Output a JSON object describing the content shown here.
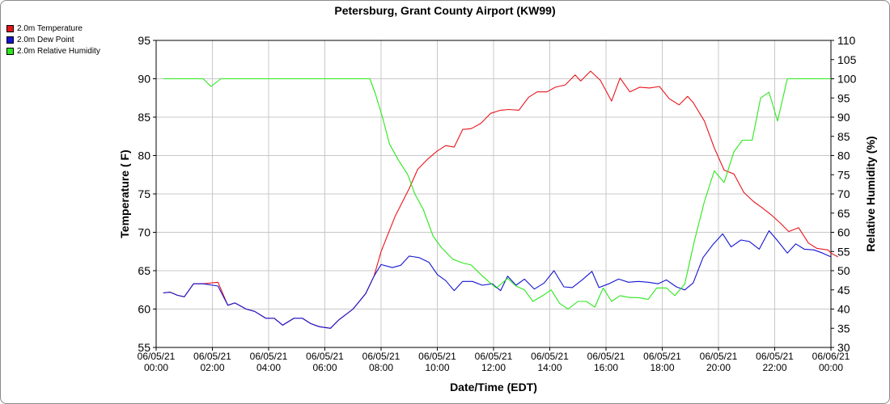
{
  "chart_data": {
    "type": "line",
    "title": "Petersburg, Grant County Airport (KW99)",
    "xlabel": "Date/Time (EDT)",
    "ylabel": "Temperature ( F)",
    "y2label": "Relative Humidity (%)",
    "x_ticks": [
      {
        "date": "06/05/21",
        "time": "00:00",
        "hour": 0
      },
      {
        "date": "06/05/21",
        "time": "02:00",
        "hour": 2
      },
      {
        "date": "06/05/21",
        "time": "04:00",
        "hour": 4
      },
      {
        "date": "06/05/21",
        "time": "06:00",
        "hour": 6
      },
      {
        "date": "06/05/21",
        "time": "08:00",
        "hour": 8
      },
      {
        "date": "06/05/21",
        "time": "10:00",
        "hour": 10
      },
      {
        "date": "06/05/21",
        "time": "12:00",
        "hour": 12
      },
      {
        "date": "06/05/21",
        "time": "14:00",
        "hour": 14
      },
      {
        "date": "06/05/21",
        "time": "16:00",
        "hour": 16
      },
      {
        "date": "06/05/21",
        "time": "18:00",
        "hour": 18
      },
      {
        "date": "06/05/21",
        "time": "20:00",
        "hour": 20
      },
      {
        "date": "06/05/21",
        "time": "22:00",
        "hour": 22
      },
      {
        "date": "06/06/21",
        "time": "00:00",
        "hour": 24
      }
    ],
    "ylim": [
      55,
      95
    ],
    "yticks": [
      55,
      60,
      65,
      70,
      75,
      80,
      85,
      90,
      95
    ],
    "y2lim": [
      30,
      110
    ],
    "y2ticks": [
      30,
      35,
      40,
      45,
      50,
      55,
      60,
      65,
      70,
      75,
      80,
      85,
      90,
      95,
      100,
      105,
      110
    ],
    "grid": true,
    "legend_position": "top-left",
    "series": [
      {
        "name": "2.0m Temperature",
        "color": "#e8141c",
        "axis": "left",
        "points": [
          [
            0.25,
            62.1
          ],
          [
            0.5,
            62.2
          ],
          [
            0.75,
            61.8
          ],
          [
            1.0,
            61.6
          ],
          [
            1.33,
            63.3
          ],
          [
            1.67,
            63.3
          ],
          [
            2.2,
            63.5
          ],
          [
            2.55,
            60.5
          ],
          [
            2.8,
            60.8
          ],
          [
            3.2,
            60.0
          ],
          [
            3.5,
            59.7
          ],
          [
            3.9,
            58.8
          ],
          [
            4.2,
            58.8
          ],
          [
            4.5,
            57.9
          ],
          [
            4.9,
            58.8
          ],
          [
            5.2,
            58.8
          ],
          [
            5.5,
            58.1
          ],
          [
            5.8,
            57.7
          ],
          [
            6.2,
            57.5
          ],
          [
            6.5,
            58.6
          ],
          [
            7.0,
            60.0
          ],
          [
            7.45,
            62.0
          ],
          [
            7.75,
            64.3
          ],
          [
            8.0,
            67.5
          ],
          [
            8.5,
            72.1
          ],
          [
            9.0,
            75.7
          ],
          [
            9.3,
            78.2
          ],
          [
            9.65,
            79.5
          ],
          [
            10.0,
            80.6
          ],
          [
            10.3,
            81.3
          ],
          [
            10.6,
            81.1
          ],
          [
            10.9,
            83.4
          ],
          [
            11.2,
            83.5
          ],
          [
            11.55,
            84.2
          ],
          [
            11.9,
            85.5
          ],
          [
            12.25,
            85.9
          ],
          [
            12.55,
            86.0
          ],
          [
            12.9,
            85.9
          ],
          [
            13.25,
            87.6
          ],
          [
            13.55,
            88.3
          ],
          [
            13.9,
            88.3
          ],
          [
            14.2,
            88.9
          ],
          [
            14.55,
            89.2
          ],
          [
            14.9,
            90.5
          ],
          [
            15.1,
            89.7
          ],
          [
            15.45,
            91.0
          ],
          [
            15.8,
            89.8
          ],
          [
            16.2,
            87.1
          ],
          [
            16.5,
            90.1
          ],
          [
            16.85,
            88.3
          ],
          [
            17.2,
            88.9
          ],
          [
            17.55,
            88.8
          ],
          [
            17.9,
            89.0
          ],
          [
            18.25,
            87.4
          ],
          [
            18.6,
            86.6
          ],
          [
            18.9,
            87.7
          ],
          [
            19.1,
            86.9
          ],
          [
            19.5,
            84.5
          ],
          [
            19.85,
            81.0
          ],
          [
            20.2,
            78.1
          ],
          [
            20.55,
            77.6
          ],
          [
            20.9,
            75.2
          ],
          [
            21.25,
            74.0
          ],
          [
            21.55,
            73.2
          ],
          [
            21.9,
            72.2
          ],
          [
            22.2,
            71.2
          ],
          [
            22.5,
            70.1
          ],
          [
            22.85,
            70.6
          ],
          [
            23.2,
            68.6
          ],
          [
            23.5,
            67.9
          ],
          [
            23.9,
            67.7
          ],
          [
            24.0,
            67.3
          ],
          [
            24.25,
            66.8
          ]
        ]
      },
      {
        "name": "2.0m Dew Point",
        "color": "#1414d2",
        "axis": "left",
        "points": [
          [
            0.25,
            62.1
          ],
          [
            0.5,
            62.2
          ],
          [
            0.75,
            61.8
          ],
          [
            1.0,
            61.6
          ],
          [
            1.33,
            63.3
          ],
          [
            1.67,
            63.3
          ],
          [
            2.2,
            63.0
          ],
          [
            2.55,
            60.5
          ],
          [
            2.8,
            60.8
          ],
          [
            3.2,
            60.0
          ],
          [
            3.5,
            59.7
          ],
          [
            3.9,
            58.8
          ],
          [
            4.2,
            58.8
          ],
          [
            4.5,
            57.9
          ],
          [
            4.9,
            58.8
          ],
          [
            5.2,
            58.8
          ],
          [
            5.5,
            58.1
          ],
          [
            5.8,
            57.7
          ],
          [
            6.2,
            57.5
          ],
          [
            6.5,
            58.6
          ],
          [
            7.0,
            60.0
          ],
          [
            7.45,
            62.0
          ],
          [
            7.75,
            64.3
          ],
          [
            8.0,
            65.8
          ],
          [
            8.4,
            65.4
          ],
          [
            8.7,
            65.7
          ],
          [
            9.0,
            66.9
          ],
          [
            9.35,
            66.7
          ],
          [
            9.7,
            66.1
          ],
          [
            10.0,
            64.5
          ],
          [
            10.3,
            63.7
          ],
          [
            10.6,
            62.4
          ],
          [
            10.9,
            63.6
          ],
          [
            11.25,
            63.6
          ],
          [
            11.6,
            63.1
          ],
          [
            11.95,
            63.3
          ],
          [
            12.25,
            62.4
          ],
          [
            12.5,
            64.3
          ],
          [
            12.8,
            63.1
          ],
          [
            13.1,
            63.9
          ],
          [
            13.45,
            62.6
          ],
          [
            13.8,
            63.4
          ],
          [
            14.15,
            65.0
          ],
          [
            14.5,
            62.9
          ],
          [
            14.8,
            62.8
          ],
          [
            15.15,
            63.8
          ],
          [
            15.5,
            64.9
          ],
          [
            15.75,
            62.8
          ],
          [
            16.1,
            63.3
          ],
          [
            16.45,
            63.9
          ],
          [
            16.8,
            63.5
          ],
          [
            17.15,
            63.6
          ],
          [
            17.5,
            63.5
          ],
          [
            17.85,
            63.3
          ],
          [
            18.15,
            63.8
          ],
          [
            18.5,
            62.9
          ],
          [
            18.8,
            62.5
          ],
          [
            19.1,
            63.4
          ],
          [
            19.45,
            66.7
          ],
          [
            19.8,
            68.4
          ],
          [
            20.15,
            69.8
          ],
          [
            20.45,
            68.1
          ],
          [
            20.8,
            69.0
          ],
          [
            21.1,
            68.8
          ],
          [
            21.45,
            67.8
          ],
          [
            21.8,
            70.2
          ],
          [
            22.1,
            68.9
          ],
          [
            22.45,
            67.3
          ],
          [
            22.75,
            68.5
          ],
          [
            23.05,
            67.8
          ],
          [
            23.4,
            67.7
          ],
          [
            23.7,
            67.3
          ],
          [
            24.0,
            66.8
          ]
        ]
      },
      {
        "name": "2.0m Relative Humidity",
        "color": "#2ce81c",
        "axis": "right",
        "points": [
          [
            0.25,
            100
          ],
          [
            1.0,
            100
          ],
          [
            1.67,
            100
          ],
          [
            1.95,
            98
          ],
          [
            2.3,
            100
          ],
          [
            3.0,
            100
          ],
          [
            4.0,
            100
          ],
          [
            5.0,
            100
          ],
          [
            6.0,
            100
          ],
          [
            7.0,
            100
          ],
          [
            7.6,
            100
          ],
          [
            7.8,
            96
          ],
          [
            8.05,
            90
          ],
          [
            8.3,
            83
          ],
          [
            8.6,
            79
          ],
          [
            8.95,
            75
          ],
          [
            9.2,
            70
          ],
          [
            9.5,
            66
          ],
          [
            9.85,
            59
          ],
          [
            10.15,
            56
          ],
          [
            10.55,
            53
          ],
          [
            10.9,
            52
          ],
          [
            11.2,
            51.5
          ],
          [
            11.55,
            49
          ],
          [
            11.85,
            47
          ],
          [
            12.1,
            45.5
          ],
          [
            12.5,
            48
          ],
          [
            12.8,
            46
          ],
          [
            13.1,
            45
          ],
          [
            13.4,
            42
          ],
          [
            13.75,
            43.5
          ],
          [
            14.05,
            45
          ],
          [
            14.35,
            41.5
          ],
          [
            14.65,
            40
          ],
          [
            15.0,
            42
          ],
          [
            15.3,
            42
          ],
          [
            15.6,
            40.5
          ],
          [
            15.9,
            45.5
          ],
          [
            16.2,
            42
          ],
          [
            16.5,
            43.5
          ],
          [
            16.85,
            43
          ],
          [
            17.15,
            43
          ],
          [
            17.5,
            42.5
          ],
          [
            17.8,
            45.5
          ],
          [
            18.15,
            45.5
          ],
          [
            18.45,
            43.5
          ],
          [
            18.8,
            46.5
          ],
          [
            19.15,
            58
          ],
          [
            19.5,
            68
          ],
          [
            19.85,
            76
          ],
          [
            20.2,
            73
          ],
          [
            20.55,
            81
          ],
          [
            20.85,
            84
          ],
          [
            21.2,
            84
          ],
          [
            21.5,
            95
          ],
          [
            21.8,
            96.5
          ],
          [
            22.1,
            89
          ],
          [
            22.45,
            100
          ],
          [
            22.75,
            100
          ],
          [
            23.1,
            100
          ],
          [
            24.0,
            100
          ]
        ]
      }
    ]
  }
}
